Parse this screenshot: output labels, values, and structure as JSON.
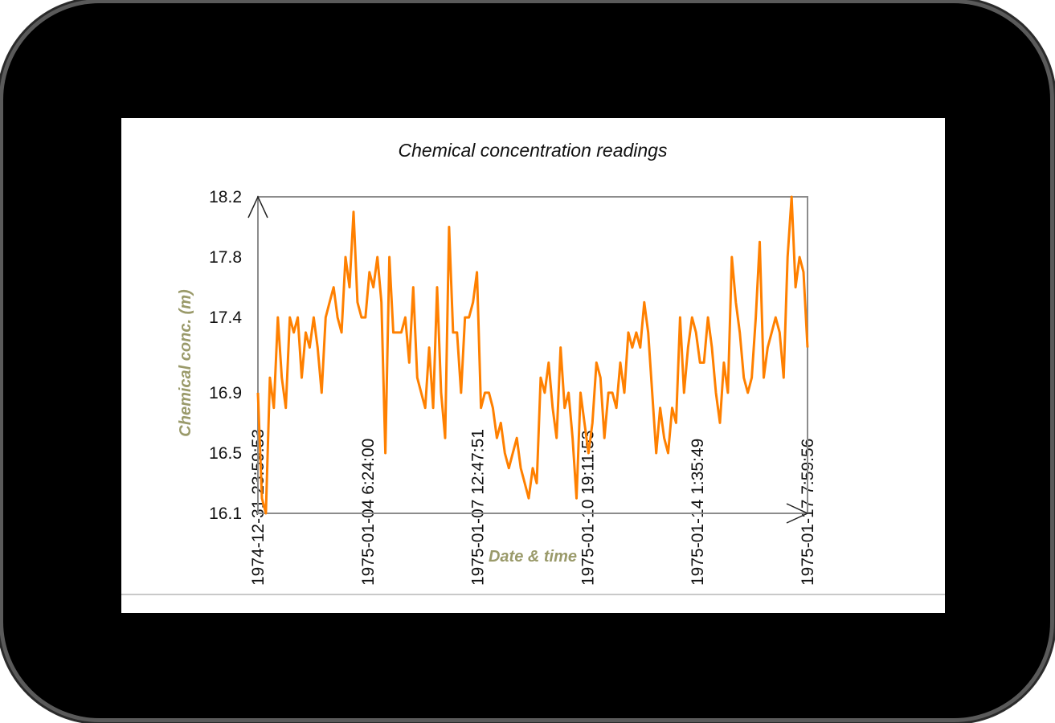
{
  "colors": {
    "device_frame": "#000000",
    "device_border": "#5a5a5a",
    "screen_bg": "#ffffff",
    "series_line": "#ff8000",
    "axis_label": "#9a9a6a",
    "axis_line": "#8c8c8c"
  },
  "chart_data": {
    "type": "line",
    "title": "Chemical concentration readings",
    "xlabel": "Date & time",
    "ylabel": "Chemical conc. (m)",
    "ylim": [
      16.1,
      18.2
    ],
    "xlim": [
      "1974-12-31 23:59:53",
      "1975-01-17 7:59:56"
    ],
    "y_ticks": [
      {
        "value": 16.1,
        "label": "16.1"
      },
      {
        "value": 16.5,
        "label": "16.5"
      },
      {
        "value": 16.9,
        "label": "16.9"
      },
      {
        "value": 17.4,
        "label": "17.4"
      },
      {
        "value": 17.8,
        "label": "17.8"
      },
      {
        "value": 18.2,
        "label": "18.2"
      }
    ],
    "x_ticks": [
      {
        "label": "1974-12-31 23:59:53",
        "pos": 0.0
      },
      {
        "label": "1975-01-04 6:24:00",
        "pos": 0.2
      },
      {
        "label": "1975-01-07 12:47:51",
        "pos": 0.4
      },
      {
        "label": "1975-01-10 19:11:53",
        "pos": 0.6
      },
      {
        "label": "1975-01-14 1:35:49",
        "pos": 0.8
      },
      {
        "label": "1975-01-17 7:59:56",
        "pos": 1.0
      }
    ],
    "grid": false,
    "series": [
      {
        "values": [
          16.9,
          16.2,
          16.1,
          17.0,
          16.8,
          17.4,
          17.0,
          16.8,
          17.4,
          17.3,
          17.4,
          17.0,
          17.3,
          17.2,
          17.4,
          17.2,
          16.9,
          17.4,
          17.5,
          17.6,
          17.4,
          17.3,
          17.8,
          17.6,
          18.1,
          17.5,
          17.4,
          17.4,
          17.7,
          17.6,
          17.8,
          17.5,
          16.5,
          17.8,
          17.3,
          17.3,
          17.3,
          17.4,
          17.1,
          17.6,
          17.0,
          16.9,
          16.8,
          17.2,
          16.8,
          17.6,
          16.9,
          16.6,
          18.0,
          17.3,
          17.3,
          16.9,
          17.4,
          17.4,
          17.5,
          17.7,
          16.8,
          16.9,
          16.9,
          16.8,
          16.6,
          16.7,
          16.5,
          16.4,
          16.5,
          16.6,
          16.4,
          16.3,
          16.2,
          16.4,
          16.3,
          17.0,
          16.9,
          17.1,
          16.8,
          16.6,
          17.2,
          16.8,
          16.9,
          16.6,
          16.2,
          16.9,
          16.7,
          16.5,
          16.7,
          17.1,
          17.0,
          16.6,
          16.9,
          16.9,
          16.8,
          17.1,
          16.9,
          17.3,
          17.2,
          17.3,
          17.2,
          17.5,
          17.3,
          16.9,
          16.5,
          16.8,
          16.6,
          16.5,
          16.8,
          16.7,
          17.4,
          16.9,
          17.2,
          17.4,
          17.3,
          17.1,
          17.1,
          17.4,
          17.2,
          16.9,
          16.7,
          17.1,
          16.9,
          17.8,
          17.5,
          17.3,
          17.0,
          16.9,
          17.0,
          17.4,
          17.9,
          17.0,
          17.2,
          17.3,
          17.4,
          17.3,
          17.0,
          17.8,
          18.2,
          17.6,
          17.8,
          17.7,
          17.2
        ]
      }
    ]
  }
}
